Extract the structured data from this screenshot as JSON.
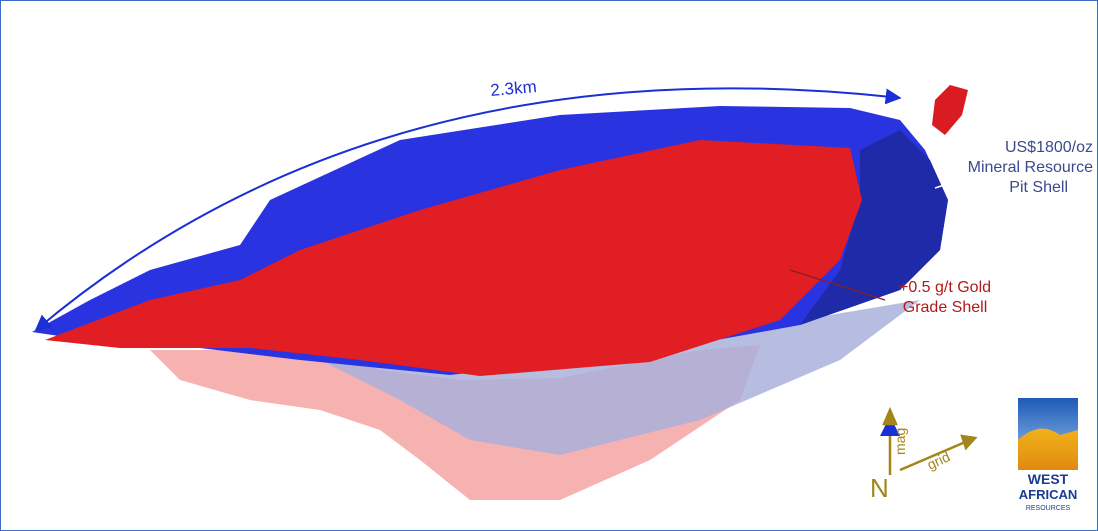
{
  "annotations": {
    "distance": "2.3km",
    "pit_shell": [
      "US$1800/oz",
      "Mineral Resource",
      "Pit Shell"
    ],
    "grade_shell": [
      "+0.5 g/t Gold",
      "Grade Shell"
    ]
  },
  "north_arrow": {
    "north": "N",
    "mag": "mag",
    "grid": "grid"
  },
  "logo": {
    "lines": [
      "WEST",
      "AFRICAN",
      "RESOURCES"
    ]
  }
}
